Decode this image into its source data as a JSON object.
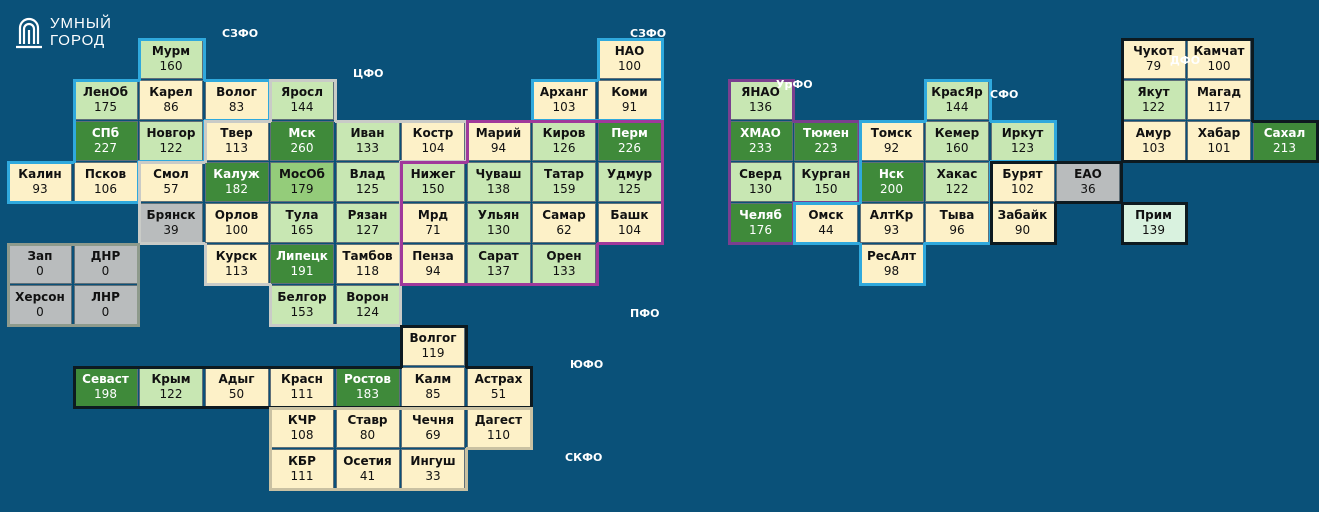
{
  "logo": {
    "line1": "УМНЫЙ",
    "line2": "ГОРОД"
  },
  "colors": {
    "background": "#0a5179",
    "low": "#fdf1c8",
    "medium_low": "#c8e7b3",
    "medium_high": "#94cc7a",
    "high": "#3f8a3a",
    "prim": "#d9f2df",
    "zero": "#b9bcbd"
  },
  "districts": [
    {
      "id": "szfo_west",
      "label": "СЗФО",
      "border": "#2fa9dd"
    },
    {
      "id": "cfo",
      "label": "ЦФО",
      "border": "#c9cbc7"
    },
    {
      "id": "szfo_east",
      "label": "СЗФО",
      "border": "#2fa9dd"
    },
    {
      "id": "pfo",
      "label": "ПФО",
      "border": "#a0399b"
    },
    {
      "id": "urfo",
      "label": "УрФО",
      "border": "#7a3f8f"
    },
    {
      "id": "sfo",
      "label": "СФО",
      "border": "#2fa9dd"
    },
    {
      "id": "dfo",
      "label": "ДФО",
      "border": "#0d1a20"
    },
    {
      "id": "ufo",
      "label": "ЮФО",
      "border": "#0d1a20"
    },
    {
      "id": "skfo",
      "label": "СКФО",
      "border": "#c9c1a2"
    }
  ],
  "regions": [
    {
      "name": "Мурм",
      "value": "160",
      "color": "light"
    },
    {
      "name": "ЛенОб",
      "value": "175",
      "color": "light"
    },
    {
      "name": "Карел",
      "value": "86",
      "color": "cream"
    },
    {
      "name": "Волог",
      "value": "83",
      "color": "cream"
    },
    {
      "name": "СПб",
      "value": "227",
      "color": "dark"
    },
    {
      "name": "Новгор",
      "value": "122",
      "color": "light"
    },
    {
      "name": "Калин",
      "value": "93",
      "color": "cream"
    },
    {
      "name": "Псков",
      "value": "106",
      "color": "cream"
    },
    {
      "name": "Яросл",
      "value": "144",
      "color": "light"
    },
    {
      "name": "Твер",
      "value": "113",
      "color": "cream"
    },
    {
      "name": "Мск",
      "value": "260",
      "color": "dark"
    },
    {
      "name": "Иван",
      "value": "133",
      "color": "light"
    },
    {
      "name": "Костр",
      "value": "104",
      "color": "cream"
    },
    {
      "name": "Смол",
      "value": "57",
      "color": "cream"
    },
    {
      "name": "Калуж",
      "value": "182",
      "color": "dark"
    },
    {
      "name": "МосОб",
      "value": "179",
      "color": "mid"
    },
    {
      "name": "Влад",
      "value": "125",
      "color": "light"
    },
    {
      "name": "Брянск",
      "value": "39",
      "color": "gray"
    },
    {
      "name": "Орлов",
      "value": "100",
      "color": "cream"
    },
    {
      "name": "Тула",
      "value": "165",
      "color": "light"
    },
    {
      "name": "Рязан",
      "value": "127",
      "color": "light"
    },
    {
      "name": "Курск",
      "value": "113",
      "color": "cream"
    },
    {
      "name": "Липецк",
      "value": "191",
      "color": "dark"
    },
    {
      "name": "Тамбов",
      "value": "118",
      "color": "cream"
    },
    {
      "name": "Белгор",
      "value": "153",
      "color": "light"
    },
    {
      "name": "Ворон",
      "value": "124",
      "color": "light"
    },
    {
      "name": "НАО",
      "value": "100",
      "color": "cream"
    },
    {
      "name": "Арханг",
      "value": "103",
      "color": "cream"
    },
    {
      "name": "Коми",
      "value": "91",
      "color": "cream"
    },
    {
      "name": "Марий",
      "value": "94",
      "color": "cream"
    },
    {
      "name": "Киров",
      "value": "126",
      "color": "light"
    },
    {
      "name": "Перм",
      "value": "226",
      "color": "dark"
    },
    {
      "name": "Нижег",
      "value": "150",
      "color": "light"
    },
    {
      "name": "Чуваш",
      "value": "138",
      "color": "light"
    },
    {
      "name": "Татар",
      "value": "159",
      "color": "light"
    },
    {
      "name": "Удмур",
      "value": "125",
      "color": "light"
    },
    {
      "name": "Мрд",
      "value": "71",
      "color": "cream"
    },
    {
      "name": "Ульян",
      "value": "130",
      "color": "light"
    },
    {
      "name": "Самар",
      "value": "62",
      "color": "cream"
    },
    {
      "name": "Башк",
      "value": "104",
      "color": "cream"
    },
    {
      "name": "Пенза",
      "value": "94",
      "color": "cream"
    },
    {
      "name": "Сарат",
      "value": "137",
      "color": "light"
    },
    {
      "name": "Орен",
      "value": "133",
      "color": "light"
    },
    {
      "name": "ЯНАО",
      "value": "136",
      "color": "light"
    },
    {
      "name": "ХМАО",
      "value": "233",
      "color": "dark"
    },
    {
      "name": "Тюмен",
      "value": "223",
      "color": "dark"
    },
    {
      "name": "Сверд",
      "value": "130",
      "color": "light"
    },
    {
      "name": "Курган",
      "value": "150",
      "color": "light"
    },
    {
      "name": "Челяб",
      "value": "176",
      "color": "dark"
    },
    {
      "name": "КрасЯр",
      "value": "144",
      "color": "light"
    },
    {
      "name": "Томск",
      "value": "92",
      "color": "cream"
    },
    {
      "name": "Кемер",
      "value": "160",
      "color": "light"
    },
    {
      "name": "Иркут",
      "value": "123",
      "color": "light"
    },
    {
      "name": "Нск",
      "value": "200",
      "color": "dark"
    },
    {
      "name": "Хакас",
      "value": "122",
      "color": "light"
    },
    {
      "name": "Омск",
      "value": "44",
      "color": "cream"
    },
    {
      "name": "АлтКр",
      "value": "93",
      "color": "cream"
    },
    {
      "name": "Тыва",
      "value": "96",
      "color": "cream"
    },
    {
      "name": "РесАлт",
      "value": "98",
      "color": "cream"
    },
    {
      "name": "Чукот",
      "value": "79",
      "color": "cream"
    },
    {
      "name": "Камчат",
      "value": "100",
      "color": "cream"
    },
    {
      "name": "Якут",
      "value": "122",
      "color": "light"
    },
    {
      "name": "Магад",
      "value": "117",
      "color": "cream"
    },
    {
      "name": "Амур",
      "value": "103",
      "color": "cream"
    },
    {
      "name": "Хабар",
      "value": "101",
      "color": "cream"
    },
    {
      "name": "Сахал",
      "value": "213",
      "color": "dark"
    },
    {
      "name": "Бурят",
      "value": "102",
      "color": "cream"
    },
    {
      "name": "ЕАО",
      "value": "36",
      "color": "gray"
    },
    {
      "name": "Забайк",
      "value": "90",
      "color": "cream"
    },
    {
      "name": "Прим",
      "value": "139",
      "color": "mint"
    },
    {
      "name": "Зап",
      "value": "0",
      "color": "gray"
    },
    {
      "name": "ДНР",
      "value": "0",
      "color": "gray"
    },
    {
      "name": "Херсон",
      "value": "0",
      "color": "gray"
    },
    {
      "name": "ЛНР",
      "value": "0",
      "color": "gray"
    },
    {
      "name": "Волгог",
      "value": "119",
      "color": "cream"
    },
    {
      "name": "Севаст",
      "value": "198",
      "color": "dark"
    },
    {
      "name": "Крым",
      "value": "122",
      "color": "light"
    },
    {
      "name": "Адыг",
      "value": "50",
      "color": "cream"
    },
    {
      "name": "Красн",
      "value": "111",
      "color": "cream"
    },
    {
      "name": "Ростов",
      "value": "183",
      "color": "dark"
    },
    {
      "name": "Калм",
      "value": "85",
      "color": "cream"
    },
    {
      "name": "Астрах",
      "value": "51",
      "color": "cream"
    },
    {
      "name": "КЧР",
      "value": "108",
      "color": "cream"
    },
    {
      "name": "Ставр",
      "value": "80",
      "color": "cream"
    },
    {
      "name": "Чечня",
      "value": "69",
      "color": "cream"
    },
    {
      "name": "Дагест",
      "value": "110",
      "color": "cream"
    },
    {
      "name": "КБР",
      "value": "111",
      "color": "cream"
    },
    {
      "name": "Осетия",
      "value": "41",
      "color": "cream"
    },
    {
      "name": "Ингуш",
      "value": "33",
      "color": "cream"
    }
  ]
}
